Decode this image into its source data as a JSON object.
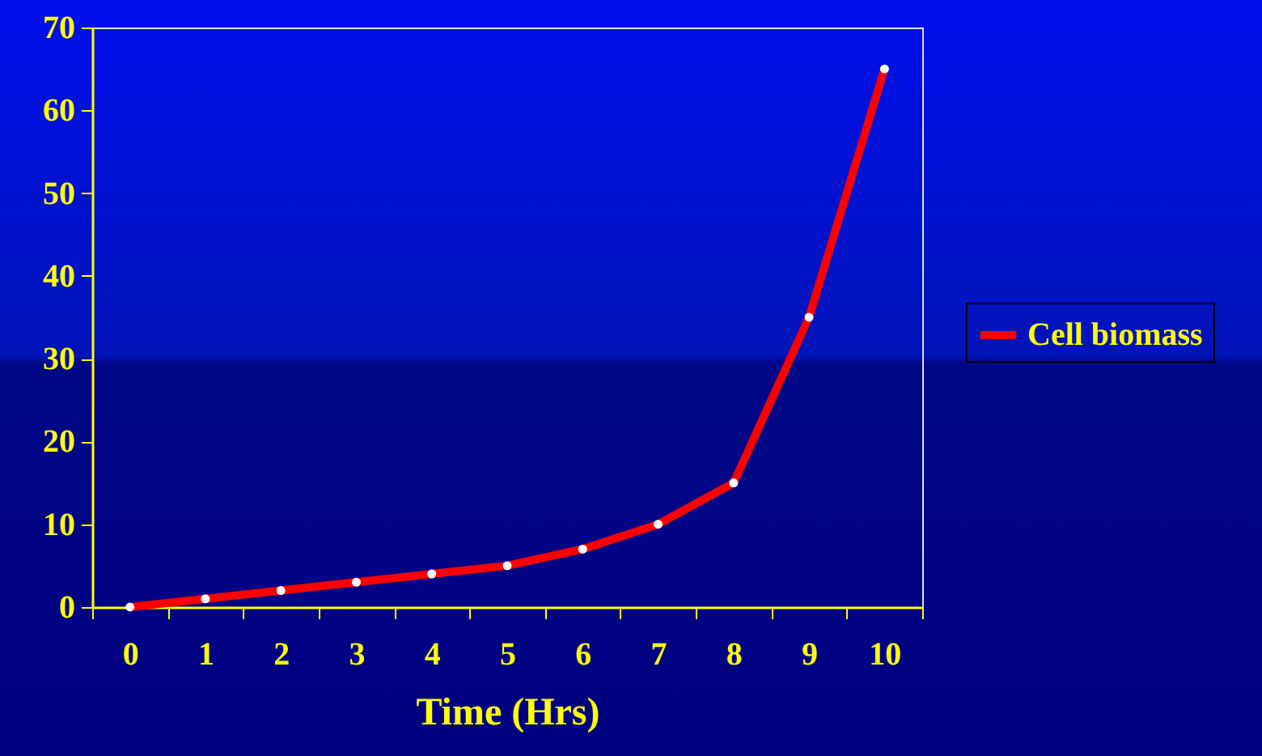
{
  "chart_data": {
    "type": "line",
    "xlabel": "Time (Hrs)",
    "categories": [
      "0",
      "1",
      "2",
      "3",
      "4",
      "5",
      "6",
      "7",
      "8",
      "9",
      "10"
    ],
    "series": [
      {
        "name": "Cell biomass",
        "color": "#ff0000",
        "values": [
          0,
          1,
          2,
          3,
          4,
          5,
          7,
          10,
          15,
          35,
          65
        ]
      }
    ],
    "ylim": [
      0,
      70
    ],
    "yticks": [
      0,
      10,
      20,
      30,
      40,
      50,
      60,
      70
    ],
    "grid": false,
    "legend": "right",
    "marker": "circle",
    "line_style": "solid"
  }
}
